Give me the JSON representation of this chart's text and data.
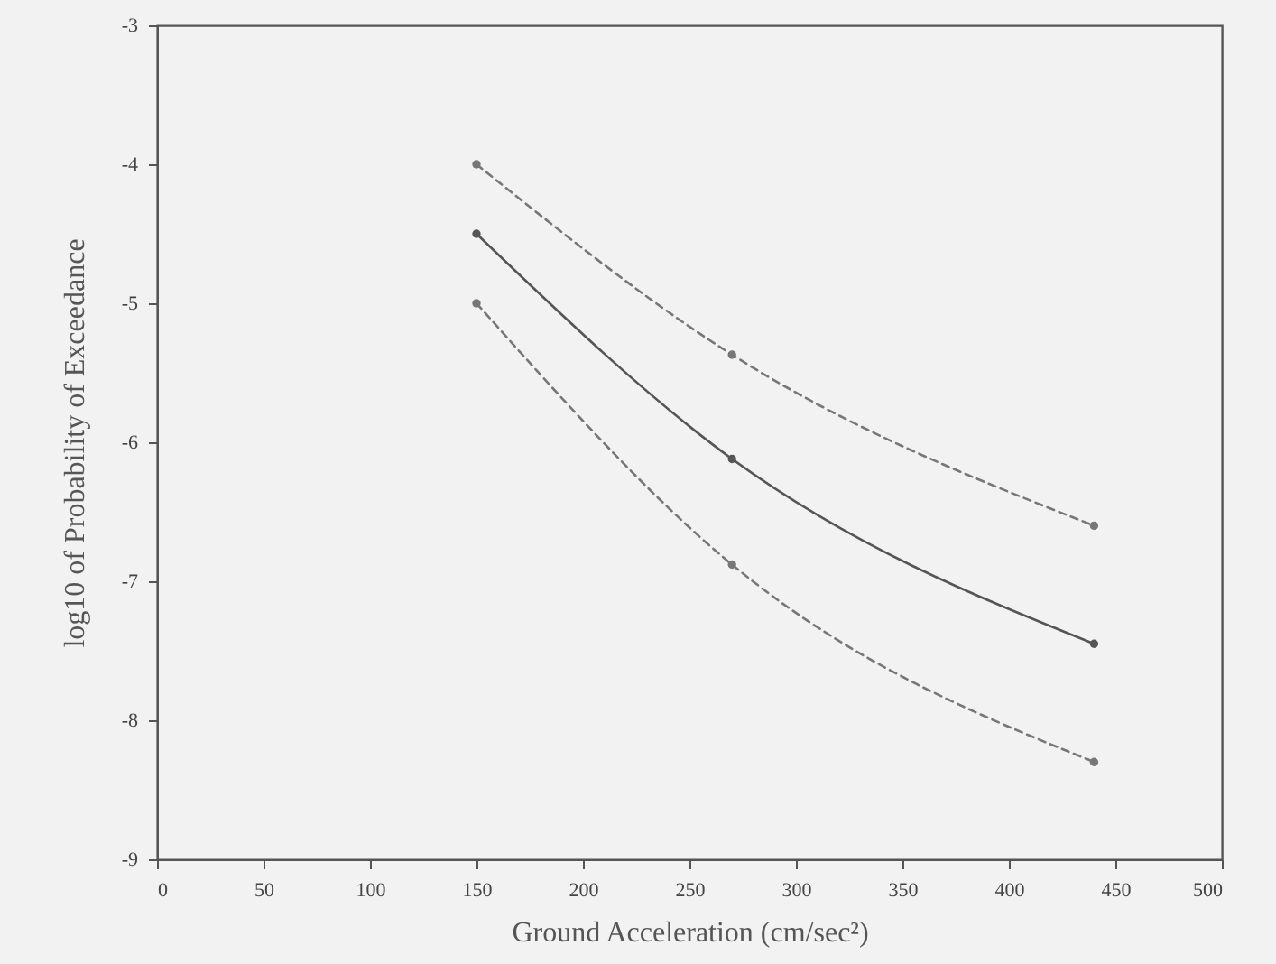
{
  "chart_data": {
    "type": "line",
    "xlabel": "Ground Acceleration (cm/sec²)",
    "ylabel": "log10 of Probability of Exceedance",
    "x": [
      150,
      270,
      440
    ],
    "series": [
      {
        "color": "#777777",
        "line_style": "dashed",
        "values": [
          -4.0,
          -5.37,
          -6.6
        ]
      },
      {
        "color": "#555555",
        "line_style": "solid",
        "values": [
          -4.5,
          -6.12,
          -7.45
        ]
      },
      {
        "color": "#777777",
        "line_style": "dashed",
        "values": [
          -5.0,
          -6.88,
          -8.3
        ]
      }
    ],
    "xlim": [
      0,
      500
    ],
    "xticks": [
      0,
      50,
      100,
      150,
      200,
      250,
      300,
      350,
      400,
      450,
      500
    ],
    "ylim": [
      -9,
      -3
    ],
    "yticks": [
      -9,
      -8,
      -7,
      -6,
      -5,
      -4,
      -3
    ],
    "grid": false,
    "marker": "circle"
  }
}
